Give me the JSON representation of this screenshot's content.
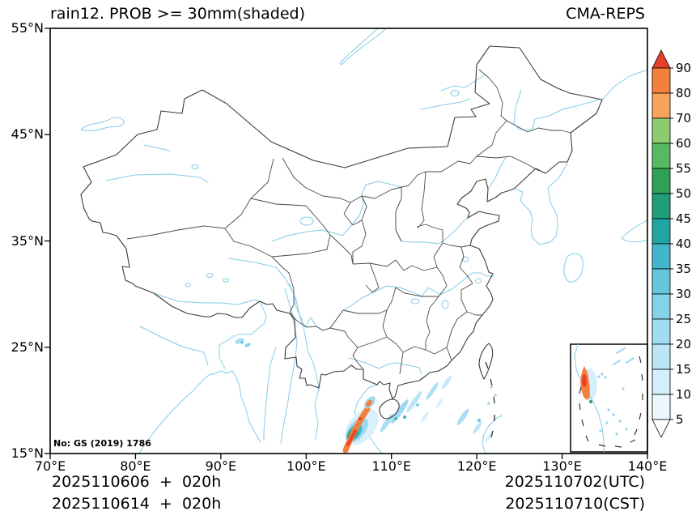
{
  "header": {
    "title": "rain12. PROB >= 30mm(shaded)",
    "model": "CMA-REPS"
  },
  "map": {
    "license": "No: GS (2019) 1786",
    "x_axis": {
      "labels": [
        "70°E",
        "80°E",
        "90°E",
        "100°E",
        "110°E",
        "120°E",
        "130°E",
        "140°E"
      ]
    },
    "y_axis": {
      "labels": [
        "55°N",
        "45°N",
        "35°N",
        "25°N",
        "15°N"
      ]
    }
  },
  "colorbar": {
    "labels": [
      "90",
      "80",
      "70",
      "60",
      "55",
      "50",
      "45",
      "40",
      "35",
      "30",
      "25",
      "20",
      "15",
      "10",
      "5"
    ],
    "segment_colors_top_to_bottom": [
      "#f5803c",
      "#f7a35c",
      "#8ccb6e",
      "#56ba63",
      "#2ea155",
      "#1f9e78",
      "#21a5a2",
      "#41b8ca",
      "#63c6dd",
      "#84d2ea",
      "#a0ddf2",
      "#bbe6f7",
      "#d4effb",
      "#eaf7fd"
    ],
    "arrow_top_color": "#e8402a",
    "arrow_bottom_color": "#ffffff"
  },
  "footer": {
    "left_line1": "2025110606  +  020h",
    "left_line2": "2025110614  +  020h",
    "right_line1": "2025110702(UTC)",
    "right_line2": "2025110710(CST)"
  },
  "chart_data": {
    "type": "filled_contour_probability_map",
    "title": "rain12. PROB >= 30mm(shaded)",
    "model": "CMA-REPS",
    "variable": "Probability of 12h rainfall >= 30 mm (%), shaded",
    "lon_range": [
      70,
      140
    ],
    "lat_range": [
      15,
      55
    ],
    "lon_ticks": [
      70,
      80,
      90,
      100,
      110,
      120,
      130,
      140
    ],
    "lat_ticks": [
      15,
      25,
      35,
      45,
      55
    ],
    "prob_levels_percent": [
      5,
      10,
      15,
      20,
      25,
      30,
      35,
      40,
      45,
      50,
      55,
      60,
      70,
      80,
      90
    ],
    "level_colors_low_to_high": [
      "#eaf7fd",
      "#d4effb",
      "#bbe6f7",
      "#a0ddf2",
      "#84d2ea",
      "#63c6dd",
      "#41b8ca",
      "#21a5a2",
      "#1f9e78",
      "#2ea155",
      "#56ba63",
      "#8ccb6e",
      "#f7a35c",
      "#f5803c"
    ],
    "above_max_color": "#e8402a",
    "below_min_color": "#ffffff",
    "init_time_labels": [
      "2025110606  +  020h",
      "2025110614  +  020h"
    ],
    "valid_time_labels": [
      "2025110702(UTC)",
      "2025110710(CST)"
    ],
    "map_features": [
      "china national boundary",
      "province boundaries",
      "rivers and lakes in light blue",
      "south china sea inset box",
      "license note No: GS (2019) 1786"
    ],
    "shaded_areas": [
      {
        "area": "Gulf of Tonkin / central Vietnam coast (~104.5-108E, 15-19N)",
        "max_category": ">=90%"
      },
      {
        "area": "scattered SW-NE rain bands over South China Sea (~108-123E, 15-22N)",
        "max_category": "5-25%"
      },
      {
        "area": "small patches south of Tibet (~91-93E, 25-26.5N)",
        "max_category": "5-20%"
      },
      {
        "area": "inset map: band along southern Vietnam coast",
        "max_category": ">=80%"
      }
    ]
  }
}
